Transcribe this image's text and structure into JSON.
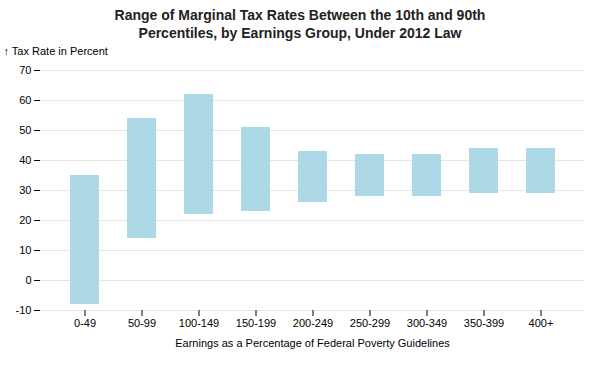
{
  "chart_data": {
    "type": "bar",
    "title": "Range of Marginal Tax Rates Between the 10th and 90th\nPercentiles, by Earnings Group, Under 2012 Law",
    "xlabel": "Earnings as a Percentage of Federal Poverty Guidelines",
    "ylabel": "Tax Rate in Percent",
    "categories": [
      "0-49",
      "50-99",
      "100-149",
      "150-199",
      "200-249",
      "250-299",
      "300-349",
      "350-399",
      "400+"
    ],
    "bottoms": [
      -8,
      14,
      22,
      23,
      26,
      28,
      28,
      29,
      29
    ],
    "tops": [
      35,
      54,
      62,
      51,
      43,
      42,
      42,
      44,
      44
    ],
    "color": "#add8e6",
    "ylim": [
      -10,
      70
    ],
    "yticks": [
      -10,
      0,
      10,
      20,
      30,
      40,
      50,
      60,
      70
    ],
    "grid": true
  }
}
